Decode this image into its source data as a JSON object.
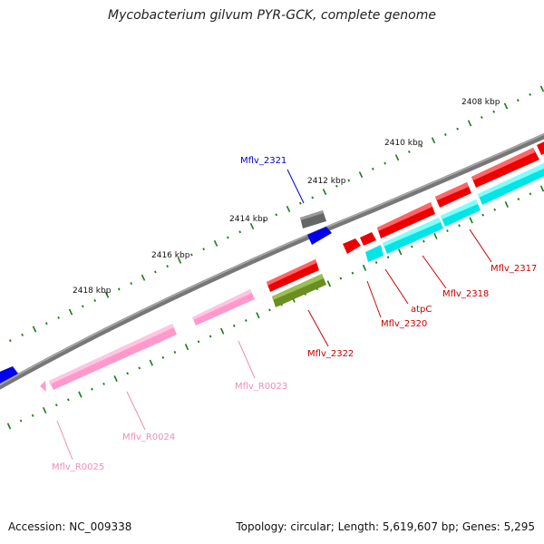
{
  "title": "Mycobacterium gilvum PYR-GCK, complete genome",
  "footer": {
    "accession": "Accession: NC_009338",
    "stats": "Topology: circular; Length: 5,619,607 bp; Genes: 5,295"
  },
  "colors": {
    "backbone": "#888888",
    "tick": "#1a7a1a",
    "cds_red": "#ff0000",
    "cds_cyan": "#00ffff",
    "cds_blue": "#0000ff",
    "cds_gray": "#666666",
    "cds_olive": "#6b8e23",
    "rna_pink": "#ff99cc",
    "label_red": "#cc0000",
    "label_blue": "#0000cc",
    "label_pink": "#f08cb8"
  },
  "scale_labels": [
    "2408 kbp",
    "2410 kbp",
    "2412 kbp",
    "2414 kbp",
    "2416 kbp",
    "2418 kbp"
  ],
  "gene_labels": {
    "mflv_2321": "Mflv_2321",
    "mflv_2317": "Mflv_2317",
    "mflv_2318": "Mflv_2318",
    "atpc": "atpC",
    "mflv_2320": "Mflv_2320",
    "mflv_2322": "Mflv_2322",
    "mflv_r0023": "Mflv_R0023",
    "mflv_r0024": "Mflv_R0024",
    "mflv_r0025": "Mflv_R0025"
  }
}
